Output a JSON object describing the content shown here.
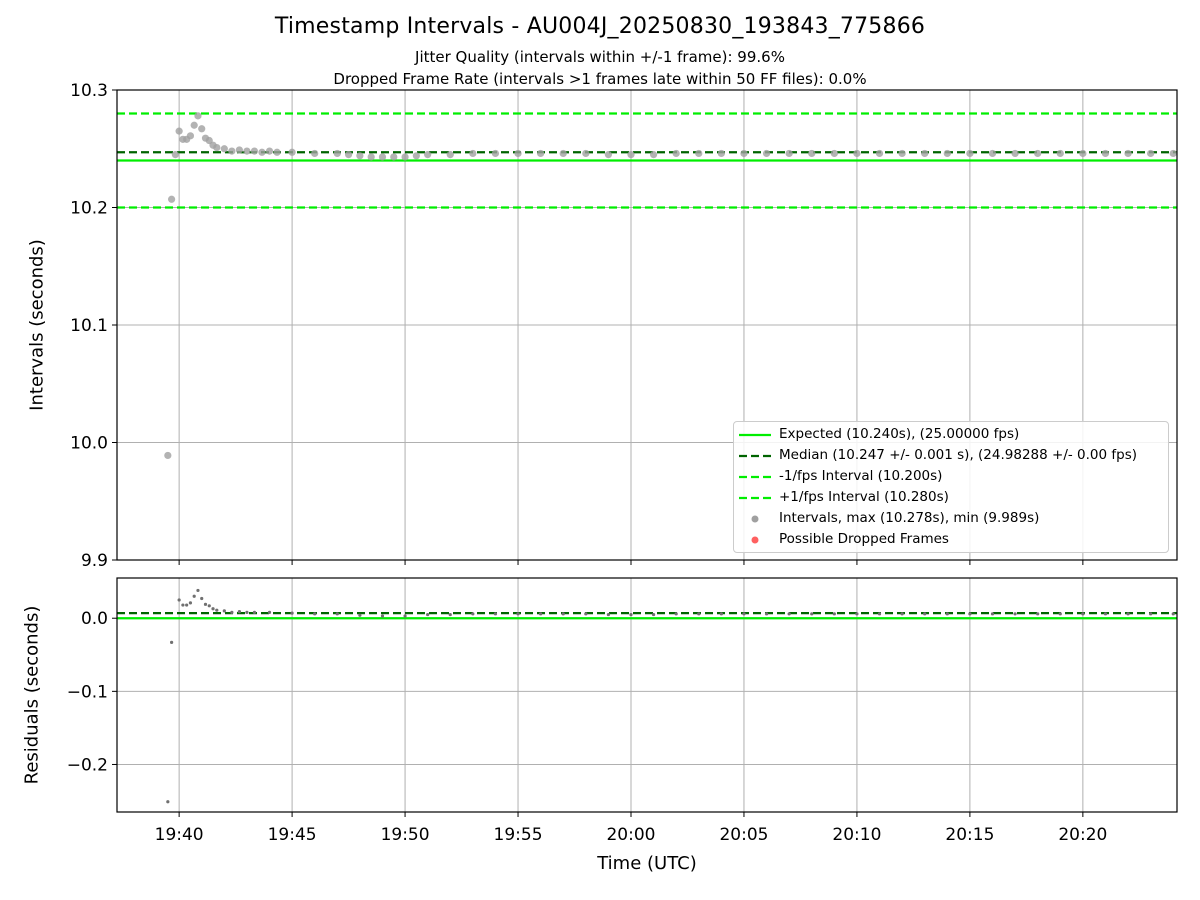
{
  "chart_data": [
    {
      "type": "scatter",
      "title": "Timestamp Intervals - AU004J_20250830_193843_775866",
      "subtitle_lines": [
        "Jitter Quality (intervals within +/-1 frame): 99.6%",
        "Dropped Frame Rate (intervals >1 frames late within 50 FF files): 0.0%"
      ],
      "ylabel": "Intervals (seconds)",
      "ylim": [
        9.9,
        10.3
      ],
      "yticks": [
        "9.9",
        "10.0",
        "10.1",
        "10.2",
        "10.3"
      ],
      "grid": true,
      "legend_position": "bottom-right",
      "reference_lines": [
        {
          "name": "Expected (10.240s), (25.00000 fps)",
          "y": 10.24,
          "style": "solid",
          "color": "#00ee00"
        },
        {
          "name": "Median (10.247 +/- 0.001 s), (24.98288 +/- 0.00 fps)",
          "y": 10.247,
          "style": "dashed",
          "color": "#006400"
        },
        {
          "name": "-1/fps Interval (10.200s)",
          "y": 10.2,
          "style": "dashed",
          "color": "#00ee00"
        },
        {
          "name": "+1/fps Interval (10.280s)",
          "y": 10.28,
          "style": "dashed",
          "color": "#00ee00"
        }
      ],
      "series": [
        {
          "name": "Intervals, max (10.278s), min (9.989s)",
          "color": "#a0a0a0",
          "points": [
            [
              "19:39:30",
              9.989
            ],
            [
              "19:39:40",
              10.207
            ],
            [
              "19:39:50",
              10.245
            ],
            [
              "19:40:00",
              10.265
            ],
            [
              "19:40:10",
              10.258
            ],
            [
              "19:40:20",
              10.258
            ],
            [
              "19:40:30",
              10.261
            ],
            [
              "19:40:40",
              10.27
            ],
            [
              "19:40:50",
              10.278
            ],
            [
              "19:41:00",
              10.267
            ],
            [
              "19:41:10",
              10.259
            ],
            [
              "19:41:20",
              10.257
            ],
            [
              "19:41:30",
              10.253
            ],
            [
              "19:41:40",
              10.251
            ],
            [
              "19:42:00",
              10.25
            ],
            [
              "19:42:20",
              10.248
            ],
            [
              "19:42:40",
              10.249
            ],
            [
              "19:43:00",
              10.248
            ],
            [
              "19:43:20",
              10.248
            ],
            [
              "19:43:40",
              10.247
            ],
            [
              "19:44:00",
              10.248
            ],
            [
              "19:44:20",
              10.247
            ],
            [
              "19:45:00",
              10.247
            ],
            [
              "19:46:00",
              10.246
            ],
            [
              "19:47:00",
              10.246
            ],
            [
              "19:47:30",
              10.245
            ],
            [
              "19:48:00",
              10.244
            ],
            [
              "19:48:30",
              10.243
            ],
            [
              "19:49:00",
              10.243
            ],
            [
              "19:49:30",
              10.243
            ],
            [
              "19:50:00",
              10.243
            ],
            [
              "19:50:30",
              10.244
            ],
            [
              "19:51:00",
              10.245
            ],
            [
              "19:52:00",
              10.245
            ],
            [
              "19:53:00",
              10.246
            ],
            [
              "19:54:00",
              10.246
            ],
            [
              "19:55:00",
              10.246
            ],
            [
              "19:56:00",
              10.246
            ],
            [
              "19:57:00",
              10.246
            ],
            [
              "19:58:00",
              10.246
            ],
            [
              "19:59:00",
              10.245
            ],
            [
              "20:00:00",
              10.245
            ],
            [
              "20:01:00",
              10.245
            ],
            [
              "20:02:00",
              10.246
            ],
            [
              "20:03:00",
              10.246
            ],
            [
              "20:04:00",
              10.246
            ],
            [
              "20:05:00",
              10.246
            ],
            [
              "20:06:00",
              10.246
            ],
            [
              "20:07:00",
              10.246
            ],
            [
              "20:08:00",
              10.246
            ],
            [
              "20:09:00",
              10.246
            ],
            [
              "20:10:00",
              10.246
            ],
            [
              "20:11:00",
              10.246
            ],
            [
              "20:12:00",
              10.246
            ],
            [
              "20:13:00",
              10.246
            ],
            [
              "20:14:00",
              10.246
            ],
            [
              "20:15:00",
              10.246
            ],
            [
              "20:16:00",
              10.246
            ],
            [
              "20:17:00",
              10.246
            ],
            [
              "20:18:00",
              10.246
            ],
            [
              "20:19:00",
              10.246
            ],
            [
              "20:20:00",
              10.246
            ],
            [
              "20:21:00",
              10.246
            ],
            [
              "20:22:00",
              10.246
            ],
            [
              "20:23:00",
              10.246
            ],
            [
              "20:24:00",
              10.246
            ]
          ]
        },
        {
          "name": "Possible Dropped Frames",
          "color": "#ff6060",
          "points": []
        }
      ]
    },
    {
      "type": "scatter",
      "ylabel": "Residuals (seconds)",
      "xlabel": "Time (UTC)",
      "ylim": [
        -0.265,
        0.055
      ],
      "yticks": [
        {
          "v": -0.2,
          "label": "−0.2"
        },
        {
          "v": -0.1,
          "label": "−0.1"
        },
        {
          "v": 0.0,
          "label": "0.0"
        }
      ],
      "xlim": [
        "19:37:15",
        "20:24:10"
      ],
      "xticks": [
        "19:40",
        "19:45",
        "19:50",
        "19:55",
        "20:00",
        "20:05",
        "20:10",
        "20:15",
        "20:20"
      ],
      "grid": true,
      "reference_lines": [
        {
          "y": 0.0,
          "style": "solid",
          "color": "#00ee00"
        },
        {
          "y": 0.007,
          "style": "dashed",
          "color": "#006400"
        }
      ],
      "series": [
        {
          "color": "#707070",
          "points": [
            [
              "19:39:30",
              -0.251
            ],
            [
              "19:39:40",
              -0.033
            ],
            [
              "19:40:00",
              0.025
            ],
            [
              "19:40:10",
              0.018
            ],
            [
              "19:40:20",
              0.018
            ],
            [
              "19:40:30",
              0.021
            ],
            [
              "19:40:40",
              0.03
            ],
            [
              "19:40:50",
              0.038
            ],
            [
              "19:41:00",
              0.027
            ],
            [
              "19:41:10",
              0.019
            ],
            [
              "19:41:20",
              0.017
            ],
            [
              "19:41:30",
              0.013
            ],
            [
              "19:41:40",
              0.011
            ],
            [
              "19:42:00",
              0.01
            ],
            [
              "19:42:20",
              0.008
            ],
            [
              "19:42:40",
              0.009
            ],
            [
              "19:43:00",
              0.008
            ],
            [
              "19:43:20",
              0.008
            ],
            [
              "19:44:00",
              0.008
            ],
            [
              "19:45:00",
              0.007
            ],
            [
              "19:46:00",
              0.006
            ],
            [
              "19:47:00",
              0.006
            ],
            [
              "19:48:00",
              0.004
            ],
            [
              "19:49:00",
              0.003
            ],
            [
              "19:50:00",
              0.003
            ],
            [
              "19:51:00",
              0.005
            ],
            [
              "19:52:00",
              0.005
            ],
            [
              "19:53:00",
              0.006
            ],
            [
              "19:54:00",
              0.006
            ],
            [
              "19:55:00",
              0.006
            ],
            [
              "19:56:00",
              0.006
            ],
            [
              "19:57:00",
              0.006
            ],
            [
              "19:58:00",
              0.006
            ],
            [
              "19:59:00",
              0.005
            ],
            [
              "20:00:00",
              0.005
            ],
            [
              "20:01:00",
              0.005
            ],
            [
              "20:02:00",
              0.006
            ],
            [
              "20:03:00",
              0.006
            ],
            [
              "20:04:00",
              0.006
            ],
            [
              "20:05:00",
              0.006
            ],
            [
              "20:06:00",
              0.006
            ],
            [
              "20:07:00",
              0.006
            ],
            [
              "20:08:00",
              0.006
            ],
            [
              "20:09:00",
              0.006
            ],
            [
              "20:10:00",
              0.006
            ],
            [
              "20:11:00",
              0.006
            ],
            [
              "20:12:00",
              0.006
            ],
            [
              "20:13:00",
              0.006
            ],
            [
              "20:14:00",
              0.006
            ],
            [
              "20:15:00",
              0.006
            ],
            [
              "20:16:00",
              0.006
            ],
            [
              "20:17:00",
              0.006
            ],
            [
              "20:18:00",
              0.006
            ],
            [
              "20:19:00",
              0.006
            ],
            [
              "20:20:00",
              0.006
            ],
            [
              "20:21:00",
              0.006
            ],
            [
              "20:22:00",
              0.006
            ],
            [
              "20:23:00",
              0.006
            ],
            [
              "20:24:00",
              0.006
            ]
          ]
        }
      ]
    }
  ]
}
